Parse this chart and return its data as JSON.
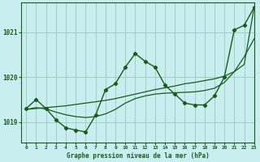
{
  "title": "Graphe pression niveau de la mer (hPa)",
  "bg_color": "#c8eef0",
  "grid_color": "#99ccbb",
  "line_color": "#1a5c1a",
  "xlim": [
    -0.5,
    23
  ],
  "ylim": [
    1018.55,
    1021.65
  ],
  "yticks": [
    1019,
    1020,
    1021
  ],
  "xticks": [
    0,
    1,
    2,
    3,
    4,
    5,
    6,
    7,
    8,
    9,
    10,
    11,
    12,
    13,
    14,
    15,
    16,
    17,
    18,
    19,
    20,
    21,
    22,
    23
  ],
  "hours": [
    0,
    1,
    2,
    3,
    4,
    5,
    6,
    7,
    8,
    9,
    10,
    11,
    12,
    13,
    14,
    15,
    16,
    17,
    18,
    19,
    20,
    21,
    22,
    23
  ],
  "pressure_main": [
    1019.3,
    1019.5,
    1019.3,
    1019.05,
    1018.87,
    1018.82,
    1018.78,
    1019.15,
    1019.72,
    1019.85,
    1020.22,
    1020.52,
    1020.35,
    1020.22,
    1019.82,
    1019.62,
    1019.42,
    1019.38,
    1019.38,
    1019.58,
    1020.0,
    1021.05,
    1021.15,
    1021.55
  ],
  "pressure_smooth1": [
    1019.28,
    1019.32,
    1019.29,
    1019.22,
    1019.16,
    1019.12,
    1019.1,
    1019.12,
    1019.18,
    1019.28,
    1019.42,
    1019.52,
    1019.58,
    1019.62,
    1019.64,
    1019.65,
    1019.66,
    1019.67,
    1019.7,
    1019.75,
    1019.88,
    1020.12,
    1020.45,
    1020.85
  ],
  "pressure_smooth2": [
    1019.28,
    1019.3,
    1019.32,
    1019.34,
    1019.36,
    1019.39,
    1019.42,
    1019.45,
    1019.48,
    1019.52,
    1019.57,
    1019.62,
    1019.67,
    1019.72,
    1019.76,
    1019.8,
    1019.85,
    1019.88,
    1019.92,
    1019.96,
    1020.02,
    1020.12,
    1020.28,
    1021.55
  ]
}
